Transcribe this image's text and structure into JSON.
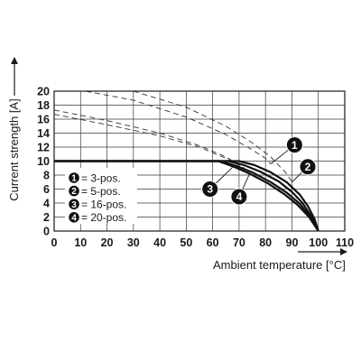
{
  "chart_data": {
    "type": "line",
    "title": "",
    "xlabel": "Ambient temperature [°C]",
    "ylabel": "Current strength [A]",
    "xlim": [
      0,
      110
    ],
    "ylim": [
      0,
      20
    ],
    "x_ticks": [
      "0",
      "10",
      "20",
      "30",
      "40",
      "50",
      "60",
      "70",
      "80",
      "90",
      "100",
      "110"
    ],
    "y_ticks": [
      "0",
      "2",
      "4",
      "6",
      "8",
      "10",
      "12",
      "14",
      "16",
      "18",
      "20"
    ],
    "grid": true,
    "legend_position": "left",
    "series": [
      {
        "name": "= 3-pos.",
        "badge": "1",
        "solid": [
          [
            0,
            10
          ],
          [
            70,
            10
          ],
          [
            76,
            9.4
          ],
          [
            82,
            8.4
          ],
          [
            88,
            7.0
          ],
          [
            93,
            5.2
          ],
          [
            96,
            3.6
          ],
          [
            98.5,
            1.8
          ],
          [
            100,
            0
          ]
        ],
        "dashed": [
          [
            12,
            20
          ],
          [
            30,
            18.7
          ],
          [
            50,
            16.3
          ],
          [
            65,
            13.8
          ],
          [
            75,
            11.6
          ],
          [
            80,
            10.4
          ],
          [
            82,
            9.6
          ]
        ]
      },
      {
        "name": "= 5-pos.",
        "badge": "2",
        "solid": [
          [
            0,
            10
          ],
          [
            66,
            10
          ],
          [
            72,
            9.4
          ],
          [
            78,
            8.5
          ],
          [
            85,
            7.1
          ],
          [
            90,
            5.6
          ],
          [
            94,
            4.0
          ],
          [
            97.5,
            2.0
          ],
          [
            100,
            0
          ]
        ],
        "dashed": [
          [
            30,
            20
          ],
          [
            50,
            17.7
          ],
          [
            65,
            15.0
          ],
          [
            75,
            12.6
          ],
          [
            82,
            10.6
          ],
          [
            88,
            8.2
          ],
          [
            90,
            7.0
          ]
        ]
      },
      {
        "name": "= 16-pos.",
        "badge": "3",
        "solid": [
          [
            0,
            10
          ],
          [
            63,
            10
          ],
          [
            69,
            9.3
          ],
          [
            75,
            8.4
          ],
          [
            82,
            7.0
          ],
          [
            88,
            5.5
          ],
          [
            93,
            3.9
          ],
          [
            97,
            2.0
          ],
          [
            100,
            0
          ]
        ],
        "dashed": [
          [
            0,
            16.7
          ],
          [
            20,
            15.2
          ],
          [
            40,
            13.6
          ],
          [
            55,
            12.0
          ],
          [
            65,
            10.4
          ],
          [
            70,
            9.4
          ]
        ]
      },
      {
        "name": "= 20-pos.",
        "badge": "4",
        "solid": [
          [
            0,
            10
          ],
          [
            62,
            10
          ],
          [
            68,
            9.2
          ],
          [
            74,
            8.2
          ],
          [
            81,
            6.8
          ],
          [
            87,
            5.3
          ],
          [
            92,
            3.8
          ],
          [
            96.5,
            2.0
          ],
          [
            100,
            0
          ]
        ],
        "dashed": [
          [
            0,
            17.3
          ],
          [
            20,
            15.8
          ],
          [
            40,
            14.0
          ],
          [
            55,
            12.2
          ],
          [
            65,
            10.6
          ],
          [
            72,
            9.0
          ]
        ]
      }
    ],
    "callouts": [
      {
        "badge": "1",
        "anchor": [
          82,
          9.6
        ],
        "label": [
          91,
          12.3
        ]
      },
      {
        "badge": "2",
        "anchor": [
          90,
          7.0
        ],
        "label": [
          96,
          9.2
        ]
      },
      {
        "badge": "3",
        "anchor": [
          68,
          9.3
        ],
        "label": [
          59,
          6.0
        ]
      },
      {
        "badge": "4",
        "anchor": [
          74,
          8.2
        ],
        "label": [
          70,
          4.9
        ]
      }
    ]
  }
}
